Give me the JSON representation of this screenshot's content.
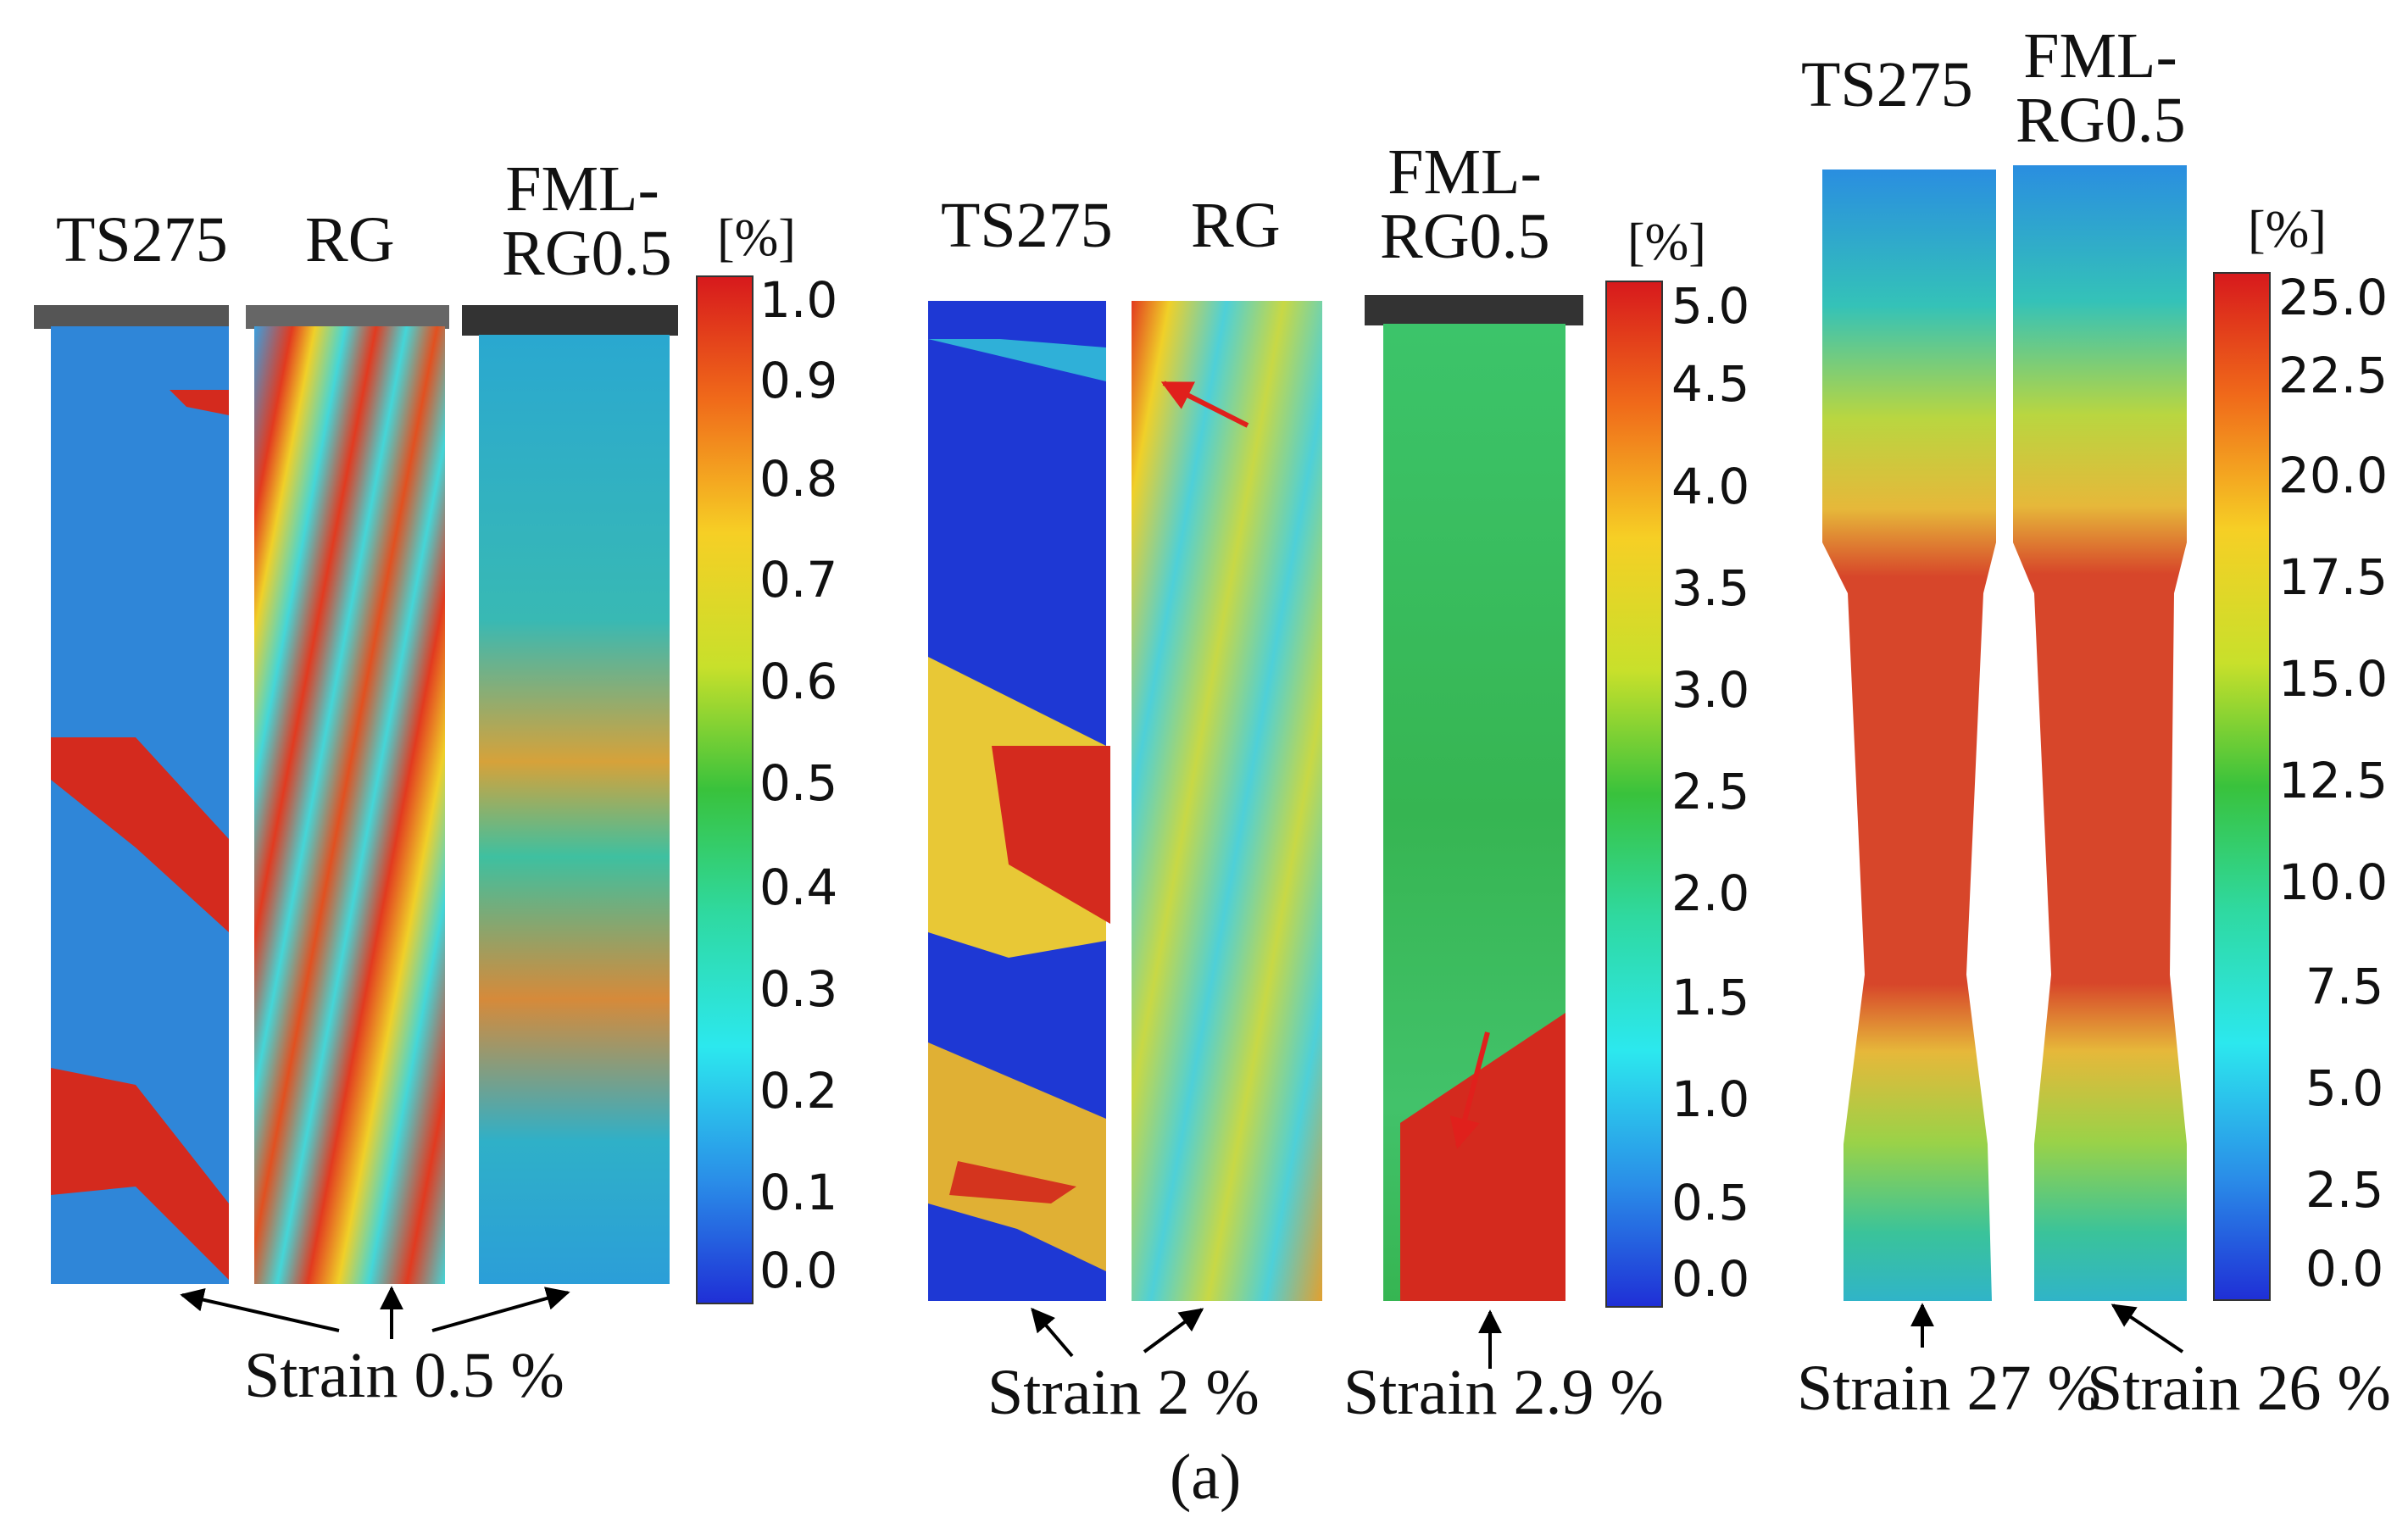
{
  "panels": [
    {
      "specimens": [
        "TS275",
        "RG",
        "FML-RG0.5"
      ],
      "unit": "[%]",
      "ticks": [
        "1.0",
        "0.9",
        "0.8",
        "0.7",
        "0.6",
        "0.5",
        "0.4",
        "0.3",
        "0.2",
        "0.1",
        "0.0"
      ],
      "captions": [
        "Strain 0.5 %"
      ]
    },
    {
      "specimens": [
        "TS275",
        "RG",
        "FML-RG0.5"
      ],
      "unit": "[%]",
      "ticks": [
        "5.0",
        "4.5",
        "4.0",
        "3.5",
        "3.0",
        "2.5",
        "2.0",
        "1.5",
        "1.0",
        "0.5",
        "0.0"
      ],
      "captions": [
        "Strain 2 %",
        "Strain 2.9 %"
      ]
    },
    {
      "specimens": [
        "TS275",
        "FML-RG0.5"
      ],
      "unit": "[%]",
      "ticks": [
        "25.0",
        "22.5",
        "20.0",
        "17.5",
        "15.0",
        "12.5",
        "10.0",
        "7.5",
        "5.0",
        "2.5",
        "0.0"
      ],
      "captions": [
        "Strain 27 %",
        "Strain 26 %"
      ]
    }
  ],
  "figure_label": "(a)",
  "colors": {
    "scale_top": "#d7191c",
    "scale_bottom": "#1f2fd6",
    "arrow_red": "#e0201c",
    "arrow_black": "#000000"
  }
}
